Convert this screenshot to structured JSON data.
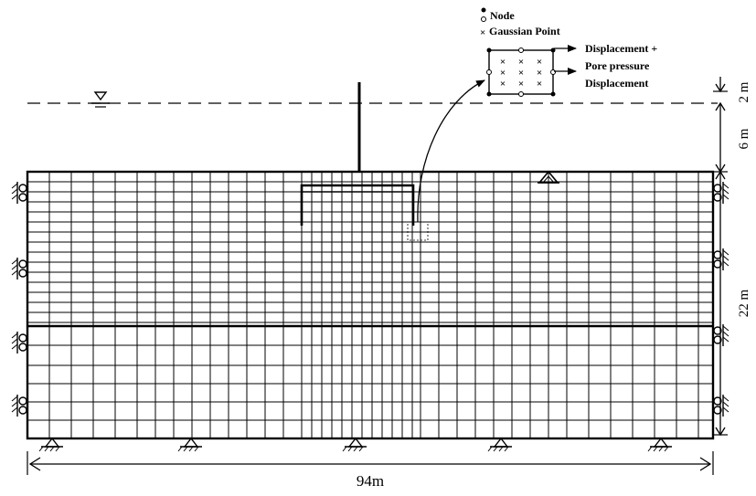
{
  "legend": {
    "node_label": "Node",
    "gauss_label": "Gaussian Point"
  },
  "element_detail": {
    "dof_line1": "Displacement +",
    "dof_line2": "Pore pressure",
    "dof_line3": "Displacement"
  },
  "dimensions": {
    "width_label": "94m",
    "water_depth_label": "2 m",
    "structure_height_label": "6 m",
    "soil_depth_label": "22 m"
  },
  "colors": {
    "line": "#000000",
    "background": "#ffffff"
  }
}
